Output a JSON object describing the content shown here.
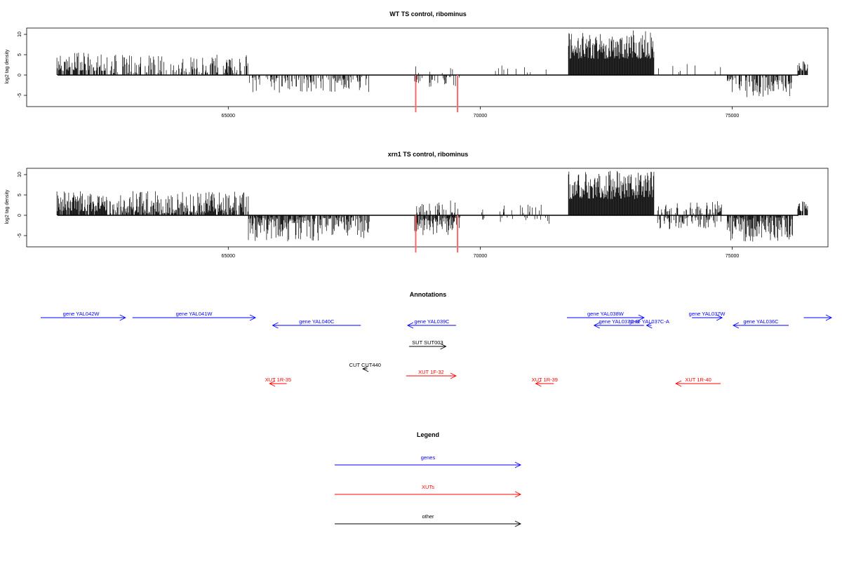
{
  "chart_data": [
    {
      "type": "bar",
      "title": "WT TS control, ribominus",
      "ylabel": "log2 tag density",
      "xlim": [
        61000,
        76900
      ],
      "ylim": [
        -7.5,
        12
      ],
      "x_ticks": [
        65000,
        70000,
        75000
      ],
      "y_ticks": [
        -5,
        0,
        5,
        10
      ],
      "colors": {
        "signal": "#000000",
        "highlight": "#ff6666"
      },
      "segments": [
        {
          "x0": 61600,
          "x1": 62600,
          "sign": 1,
          "amp": [
            1,
            5.5
          ],
          "density": 0.7
        },
        {
          "x0": 62650,
          "x1": 65400,
          "sign": 1,
          "amp": [
            0.5,
            5
          ],
          "density": 0.45
        },
        {
          "x0": 65400,
          "x1": 67800,
          "sign": -1,
          "amp": [
            0.5,
            4.5
          ],
          "density": 0.4
        },
        {
          "x0": 68700,
          "x1": 69600,
          "sign": -1,
          "amp": [
            0.5,
            3
          ],
          "density": 0.3
        },
        {
          "x0": 68700,
          "x1": 69600,
          "sign": 1,
          "amp": [
            0.5,
            3
          ],
          "density": 0.08
        },
        {
          "x0": 70000,
          "x1": 71400,
          "sign": 1,
          "amp": [
            0.5,
            2.5
          ],
          "density": 0.05
        },
        {
          "x0": 71750,
          "x1": 73450,
          "sign": 1,
          "amp": [
            4,
            11
          ],
          "density": 1.0
        },
        {
          "x0": 73500,
          "x1": 74800,
          "sign": 1,
          "amp": [
            0.5,
            3
          ],
          "density": 0.12
        },
        {
          "x0": 74900,
          "x1": 76200,
          "sign": -1,
          "amp": [
            0.5,
            5.5
          ],
          "density": 0.6
        },
        {
          "x0": 76300,
          "x1": 76500,
          "sign": 1,
          "amp": [
            1,
            4
          ],
          "density": 0.8
        }
      ],
      "highlights": [
        {
          "x": 68720,
          "y": -9.5
        },
        {
          "x": 69550,
          "y": -9.5
        }
      ]
    },
    {
      "type": "bar",
      "title": "xrn1 TS control, ribominus",
      "ylabel": "log2 tag density",
      "xlim": [
        61000,
        76900
      ],
      "ylim": [
        -7.5,
        12
      ],
      "x_ticks": [
        65000,
        70000,
        75000
      ],
      "y_ticks": [
        -5,
        0,
        5,
        10
      ],
      "colors": {
        "signal": "#000000",
        "highlight": "#ff6666"
      },
      "segments": [
        {
          "x0": 61600,
          "x1": 62600,
          "sign": 1,
          "amp": [
            1,
            6
          ],
          "density": 0.9
        },
        {
          "x0": 62650,
          "x1": 65400,
          "sign": 1,
          "amp": [
            0.5,
            6
          ],
          "density": 0.75
        },
        {
          "x0": 65400,
          "x1": 67800,
          "sign": -1,
          "amp": [
            0.5,
            6.5
          ],
          "density": 0.7
        },
        {
          "x0": 68700,
          "x1": 69600,
          "sign": -1,
          "amp": [
            0.5,
            5
          ],
          "density": 0.8
        },
        {
          "x0": 68700,
          "x1": 69600,
          "sign": 1,
          "amp": [
            0.5,
            4
          ],
          "density": 0.3
        },
        {
          "x0": 70000,
          "x1": 71400,
          "sign": 1,
          "amp": [
            0.5,
            3
          ],
          "density": 0.15
        },
        {
          "x0": 70000,
          "x1": 71400,
          "sign": -1,
          "amp": [
            0.5,
            3
          ],
          "density": 0.15
        },
        {
          "x0": 71750,
          "x1": 73450,
          "sign": 1,
          "amp": [
            4,
            11
          ],
          "density": 1.0
        },
        {
          "x0": 73500,
          "x1": 74800,
          "sign": 1,
          "amp": [
            0.5,
            3.5
          ],
          "density": 0.35
        },
        {
          "x0": 73500,
          "x1": 74800,
          "sign": -1,
          "amp": [
            0.5,
            3.5
          ],
          "density": 0.35
        },
        {
          "x0": 74900,
          "x1": 76200,
          "sign": -1,
          "amp": [
            0.5,
            6.5
          ],
          "density": 0.8
        },
        {
          "x0": 76300,
          "x1": 76500,
          "sign": 1,
          "amp": [
            1,
            3.5
          ],
          "density": 0.8
        }
      ],
      "highlights": [
        {
          "x": 68720,
          "y": -9.5
        },
        {
          "x": 69550,
          "y": -9.5
        }
      ]
    }
  ],
  "annotations": {
    "title": "Annotations",
    "colors": {
      "gene": "#0000ff",
      "xut": "#ff0000",
      "other": "#000000"
    },
    "features": [
      {
        "label": "gene YAL042W",
        "kind": "gene",
        "strand": "+",
        "x0": 61200,
        "x1": 62960,
        "row": 0
      },
      {
        "label": "gene YAL041W",
        "kind": "gene",
        "strand": "+",
        "x0": 63100,
        "x1": 65540,
        "row": 0
      },
      {
        "label": "gene YAL040C",
        "kind": "gene",
        "strand": "-",
        "x0": 65880,
        "x1": 67630,
        "row": 1
      },
      {
        "label": "gene YAL039C",
        "kind": "gene",
        "strand": "-",
        "x0": 68560,
        "x1": 69520,
        "row": 1
      },
      {
        "label": "gene YAL038W",
        "kind": "gene",
        "strand": "+",
        "x0": 71720,
        "x1": 73250,
        "row": 0
      },
      {
        "label": "gene YAL037C-B",
        "kind": "gene",
        "strand": "-",
        "x0": 72260,
        "x1": 73250,
        "row": 1
      },
      {
        "label": "gene YAL037C-A",
        "kind": "gene",
        "strand": "-",
        "x0": 73300,
        "x1": 73400,
        "row": 1
      },
      {
        "label": "gene YAL037W",
        "kind": "gene",
        "strand": "+",
        "x0": 74200,
        "x1": 74800,
        "row": 0
      },
      {
        "label": "gene YAL036C",
        "kind": "gene",
        "strand": "-",
        "x0": 75020,
        "x1": 76120,
        "row": 1
      },
      {
        "label": "",
        "kind": "gene",
        "strand": "+",
        "x0": 76420,
        "x1": 77200,
        "row": 0
      },
      {
        "label": "SUT SUT003",
        "kind": "other",
        "strand": "+",
        "x0": 68590,
        "x1": 69320,
        "row": 2
      },
      {
        "label": "CUT CUT440",
        "kind": "other",
        "strand": "-",
        "x0": 67670,
        "x1": 67760,
        "row": 3
      },
      {
        "label": "XUT 1F-32",
        "kind": "xut",
        "strand": "+",
        "x0": 68530,
        "x1": 69520,
        "row": 4
      },
      {
        "label": "XUT 1R-35",
        "kind": "xut",
        "strand": "-",
        "x0": 65820,
        "x1": 66160,
        "row": 5
      },
      {
        "label": "XUT 1R-39",
        "kind": "xut",
        "strand": "-",
        "x0": 71100,
        "x1": 71460,
        "row": 5
      },
      {
        "label": "XUT 1R-40",
        "kind": "xut",
        "strand": "-",
        "x0": 73880,
        "x1": 74770,
        "row": 5
      }
    ]
  },
  "legend": {
    "title": "Legend",
    "items": [
      {
        "label": "genes",
        "color": "#0000ff"
      },
      {
        "label": "XUTs",
        "color": "#ff0000"
      },
      {
        "label": "other",
        "color": "#000000"
      }
    ]
  }
}
